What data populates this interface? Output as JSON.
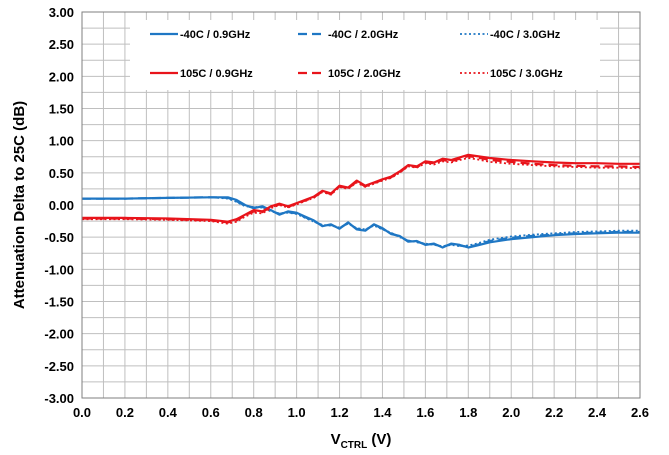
{
  "chart_data": {
    "type": "line",
    "xlabel_main": "V",
    "xlabel_sub": "CTRL",
    "xlabel_tail": " (V)",
    "ylabel": "Attenuation Delta to 25C  (dB)",
    "xlim": [
      0,
      2.6
    ],
    "ylim": [
      -3.0,
      3.0
    ],
    "xticks": [
      "0.0",
      "0.2",
      "0.4",
      "0.6",
      "0.8",
      "1.0",
      "1.2",
      "1.4",
      "1.6",
      "1.8",
      "2.0",
      "2.2",
      "2.4",
      "2.6"
    ],
    "yticks": [
      "3.00",
      "2.50",
      "2.00",
      "1.50",
      "1.00",
      "0.50",
      "0.00",
      "-0.50",
      "-1.00",
      "-1.50",
      "-2.00",
      "-2.50",
      "-3.00"
    ],
    "grid": true,
    "legend_position": "top",
    "series": [
      {
        "name": "-40C /  0.9GHz",
        "color": "#1f77c4",
        "dash": "solid",
        "x": [
          0.0,
          0.2,
          0.4,
          0.6,
          0.68,
          0.72,
          0.76,
          0.8,
          0.84,
          0.88,
          0.92,
          0.96,
          1.0,
          1.04,
          1.08,
          1.12,
          1.16,
          1.2,
          1.24,
          1.28,
          1.32,
          1.36,
          1.4,
          1.44,
          1.48,
          1.52,
          1.56,
          1.6,
          1.64,
          1.68,
          1.72,
          1.76,
          1.8,
          1.84,
          1.9,
          2.0,
          2.1,
          2.2,
          2.3,
          2.4,
          2.5,
          2.6
        ],
        "y": [
          0.1,
          0.1,
          0.11,
          0.12,
          0.12,
          0.08,
          0.0,
          -0.05,
          -0.02,
          -0.08,
          -0.15,
          -0.1,
          -0.12,
          -0.18,
          -0.24,
          -0.33,
          -0.3,
          -0.37,
          -0.27,
          -0.38,
          -0.4,
          -0.3,
          -0.36,
          -0.45,
          -0.48,
          -0.57,
          -0.56,
          -0.62,
          -0.6,
          -0.66,
          -0.6,
          -0.62,
          -0.66,
          -0.63,
          -0.58,
          -0.53,
          -0.5,
          -0.47,
          -0.45,
          -0.44,
          -0.43,
          -0.43
        ]
      },
      {
        "name": "-40C /  2.0GHz",
        "color": "#1f77c4",
        "dash": "dash",
        "x": [
          0.0,
          0.2,
          0.4,
          0.6,
          0.68,
          0.72,
          0.76,
          0.8,
          0.84,
          0.88,
          0.92,
          0.96,
          1.0,
          1.04,
          1.08,
          1.12,
          1.16,
          1.2,
          1.24,
          1.28,
          1.32,
          1.36,
          1.4,
          1.44,
          1.48,
          1.52,
          1.56,
          1.6,
          1.64,
          1.68,
          1.72,
          1.76,
          1.8,
          1.84,
          1.9,
          2.0,
          2.1,
          2.2,
          2.3,
          2.4,
          2.5,
          2.6
        ],
        "y": [
          0.1,
          0.1,
          0.11,
          0.12,
          0.11,
          0.06,
          -0.01,
          -0.04,
          -0.03,
          -0.09,
          -0.14,
          -0.11,
          -0.13,
          -0.19,
          -0.25,
          -0.32,
          -0.31,
          -0.36,
          -0.28,
          -0.37,
          -0.39,
          -0.31,
          -0.37,
          -0.44,
          -0.49,
          -0.56,
          -0.57,
          -0.61,
          -0.61,
          -0.65,
          -0.61,
          -0.63,
          -0.65,
          -0.62,
          -0.56,
          -0.51,
          -0.48,
          -0.46,
          -0.44,
          -0.43,
          -0.42,
          -0.42
        ]
      },
      {
        "name": "-40C /  3.0GHz",
        "color": "#1f77c4",
        "dash": "dot",
        "x": [
          0.0,
          0.2,
          0.4,
          0.6,
          0.68,
          0.72,
          0.76,
          0.8,
          0.84,
          0.88,
          0.92,
          0.96,
          1.0,
          1.04,
          1.08,
          1.12,
          1.16,
          1.2,
          1.24,
          1.28,
          1.32,
          1.36,
          1.4,
          1.44,
          1.48,
          1.52,
          1.56,
          1.6,
          1.64,
          1.68,
          1.72,
          1.76,
          1.8,
          1.84,
          1.9,
          2.0,
          2.1,
          2.2,
          2.3,
          2.4,
          2.5,
          2.6
        ],
        "y": [
          0.1,
          0.1,
          0.11,
          0.12,
          0.1,
          0.05,
          -0.02,
          -0.03,
          -0.04,
          -0.1,
          -0.13,
          -0.12,
          -0.14,
          -0.2,
          -0.26,
          -0.31,
          -0.32,
          -0.35,
          -0.29,
          -0.36,
          -0.38,
          -0.32,
          -0.38,
          -0.43,
          -0.5,
          -0.55,
          -0.58,
          -0.6,
          -0.62,
          -0.64,
          -0.62,
          -0.64,
          -0.63,
          -0.6,
          -0.54,
          -0.49,
          -0.46,
          -0.44,
          -0.42,
          -0.41,
          -0.4,
          -0.4
        ]
      },
      {
        "name": "105C /  0.9GHz",
        "color": "#e8141b",
        "dash": "solid",
        "x": [
          0.0,
          0.2,
          0.4,
          0.6,
          0.68,
          0.72,
          0.76,
          0.8,
          0.84,
          0.88,
          0.92,
          0.96,
          1.0,
          1.04,
          1.08,
          1.12,
          1.16,
          1.2,
          1.24,
          1.28,
          1.32,
          1.36,
          1.4,
          1.44,
          1.48,
          1.52,
          1.56,
          1.6,
          1.64,
          1.68,
          1.72,
          1.76,
          1.8,
          1.84,
          1.9,
          2.0,
          2.1,
          2.2,
          2.3,
          2.4,
          2.5,
          2.6
        ],
        "y": [
          -0.2,
          -0.2,
          -0.21,
          -0.23,
          -0.26,
          -0.22,
          -0.15,
          -0.08,
          -0.1,
          -0.02,
          0.02,
          -0.02,
          0.03,
          0.08,
          0.13,
          0.22,
          0.18,
          0.3,
          0.27,
          0.38,
          0.3,
          0.35,
          0.4,
          0.44,
          0.52,
          0.62,
          0.6,
          0.68,
          0.66,
          0.72,
          0.7,
          0.74,
          0.78,
          0.76,
          0.73,
          0.7,
          0.68,
          0.66,
          0.65,
          0.65,
          0.64,
          0.64
        ]
      },
      {
        "name": "105C /  2.0GHz",
        "color": "#e8141b",
        "dash": "dash",
        "x": [
          0.0,
          0.2,
          0.4,
          0.6,
          0.68,
          0.72,
          0.76,
          0.8,
          0.84,
          0.88,
          0.92,
          0.96,
          1.0,
          1.04,
          1.08,
          1.12,
          1.16,
          1.2,
          1.24,
          1.28,
          1.32,
          1.36,
          1.4,
          1.44,
          1.48,
          1.52,
          1.56,
          1.6,
          1.64,
          1.68,
          1.72,
          1.76,
          1.8,
          1.84,
          1.9,
          2.0,
          2.1,
          2.2,
          2.3,
          2.4,
          2.5,
          2.6
        ],
        "y": [
          -0.21,
          -0.21,
          -0.22,
          -0.24,
          -0.27,
          -0.24,
          -0.16,
          -0.1,
          -0.11,
          -0.03,
          0.01,
          -0.03,
          0.02,
          0.07,
          0.12,
          0.21,
          0.17,
          0.29,
          0.26,
          0.36,
          0.29,
          0.34,
          0.39,
          0.43,
          0.51,
          0.61,
          0.59,
          0.66,
          0.65,
          0.7,
          0.68,
          0.72,
          0.76,
          0.74,
          0.7,
          0.67,
          0.64,
          0.62,
          0.61,
          0.6,
          0.6,
          0.59
        ]
      },
      {
        "name": "105C /  3.0GHz",
        "color": "#e8141b",
        "dash": "dot",
        "x": [
          0.0,
          0.2,
          0.4,
          0.6,
          0.68,
          0.72,
          0.76,
          0.8,
          0.84,
          0.88,
          0.92,
          0.96,
          1.0,
          1.04,
          1.08,
          1.12,
          1.16,
          1.2,
          1.24,
          1.28,
          1.32,
          1.36,
          1.4,
          1.44,
          1.48,
          1.52,
          1.56,
          1.6,
          1.64,
          1.68,
          1.72,
          1.76,
          1.8,
          1.84,
          1.9,
          2.0,
          2.1,
          2.2,
          2.3,
          2.4,
          2.5,
          2.6
        ],
        "y": [
          -0.22,
          -0.22,
          -0.23,
          -0.25,
          -0.29,
          -0.26,
          -0.18,
          -0.12,
          -0.13,
          -0.05,
          0.0,
          -0.04,
          0.01,
          0.06,
          0.11,
          0.2,
          0.16,
          0.28,
          0.25,
          0.35,
          0.28,
          0.33,
          0.38,
          0.42,
          0.5,
          0.6,
          0.58,
          0.65,
          0.63,
          0.68,
          0.66,
          0.7,
          0.73,
          0.71,
          0.67,
          0.64,
          0.62,
          0.6,
          0.59,
          0.58,
          0.58,
          0.57
        ]
      }
    ]
  }
}
